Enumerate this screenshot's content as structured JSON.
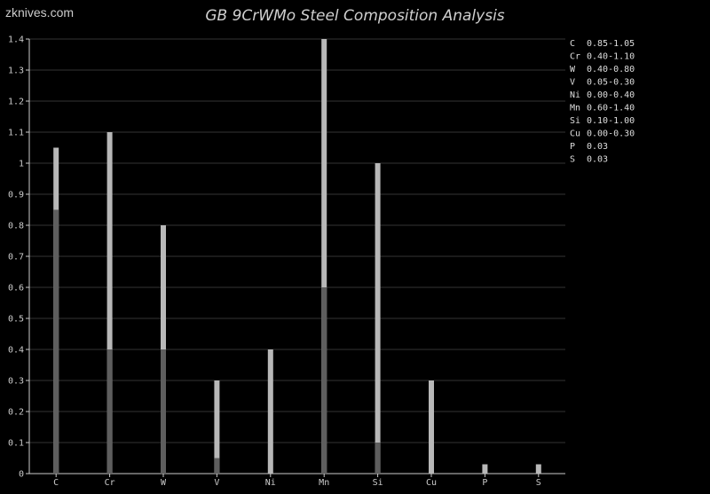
{
  "watermark": "zknives.com",
  "chart_data": {
    "type": "bar",
    "title": "GB 9CrWMo Steel Composition Analysis",
    "categories": [
      "C",
      "Cr",
      "W",
      "V",
      "Ni",
      "Mn",
      "Si",
      "Cu",
      "P",
      "S"
    ],
    "series": [
      {
        "values": [
          0.85,
          0.4,
          0.4,
          0.05,
          0.0,
          0.6,
          0.1,
          0.0,
          0.0,
          0.0
        ]
      },
      {
        "values": [
          1.05,
          1.1,
          0.8,
          0.3,
          0.4,
          1.4,
          1.0,
          0.3,
          0.03,
          0.03
        ]
      }
    ],
    "ylim": [
      0,
      1.4
    ],
    "yticks": [
      "0",
      "0.1",
      "0.2",
      "0.3",
      "0.4",
      "0.5",
      "0.6",
      "0.7",
      "0.8",
      "0.9",
      "1",
      "1.1",
      "1.2",
      "1.3",
      "1.4"
    ],
    "grid": true,
    "legend_position": "right",
    "legend": [
      {
        "element": "C",
        "range": "0.85-1.05"
      },
      {
        "element": "Cr",
        "range": "0.40-1.10"
      },
      {
        "element": "W",
        "range": "0.40-0.80"
      },
      {
        "element": "V",
        "range": "0.05-0.30"
      },
      {
        "element": "Ni",
        "range": "0.00-0.40"
      },
      {
        "element": "Mn",
        "range": "0.60-1.40"
      },
      {
        "element": "Si",
        "range": "0.10-1.00"
      },
      {
        "element": "Cu",
        "range": "0.00-0.30"
      },
      {
        "element": "P",
        "range": "0.03"
      },
      {
        "element": "S",
        "range": "0.03"
      }
    ],
    "colors": {
      "min_bar": "#5e5e5e",
      "max_bar": "#b8b8b8",
      "grid": "#333333",
      "axis": "#cccccc"
    }
  }
}
